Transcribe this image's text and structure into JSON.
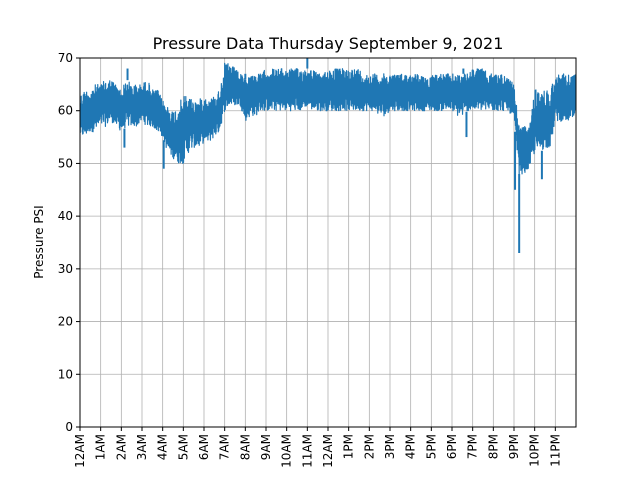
{
  "chart_data": {
    "type": "line",
    "title": "Pressure Data Thursday September 9, 2021",
    "xlabel": "",
    "ylabel": "Pressure PSI",
    "ylim": [
      0,
      70
    ],
    "xlim": [
      0,
      24
    ],
    "grid": true,
    "y_ticks": [
      0,
      10,
      20,
      30,
      40,
      50,
      60,
      70
    ],
    "x_ticks": [
      {
        "hour": 0,
        "label": "12AM"
      },
      {
        "hour": 1,
        "label": "1AM"
      },
      {
        "hour": 2,
        "label": "2AM"
      },
      {
        "hour": 3,
        "label": "3AM"
      },
      {
        "hour": 4,
        "label": "4AM"
      },
      {
        "hour": 5,
        "label": "5AM"
      },
      {
        "hour": 6,
        "label": "6AM"
      },
      {
        "hour": 7,
        "label": "7AM"
      },
      {
        "hour": 8,
        "label": "8AM"
      },
      {
        "hour": 9,
        "label": "9AM"
      },
      {
        "hour": 10,
        "label": "10AM"
      },
      {
        "hour": 11,
        "label": "11AM"
      },
      {
        "hour": 12,
        "label": "12AM"
      },
      {
        "hour": 13,
        "label": "1PM"
      },
      {
        "hour": 14,
        "label": "2PM"
      },
      {
        "hour": 15,
        "label": "3PM"
      },
      {
        "hour": 16,
        "label": "4PM"
      },
      {
        "hour": 17,
        "label": "5PM"
      },
      {
        "hour": 18,
        "label": "6PM"
      },
      {
        "hour": 19,
        "label": "7PM"
      },
      {
        "hour": 20,
        "label": "8PM"
      },
      {
        "hour": 21,
        "label": "9PM"
      },
      {
        "hour": 22,
        "label": "10PM"
      },
      {
        "hour": 23,
        "label": "11PM"
      }
    ],
    "series": [
      {
        "color": "#1f77b4",
        "x": [
          0.0,
          0.25,
          0.5,
          0.75,
          1.0,
          1.25,
          1.5,
          1.75,
          2.0,
          2.25,
          2.5,
          2.75,
          3.0,
          3.25,
          3.5,
          3.75,
          4.0,
          4.25,
          4.5,
          4.75,
          5.0,
          5.25,
          5.5,
          5.75,
          6.0,
          6.25,
          6.5,
          6.75,
          7.0,
          7.25,
          7.5,
          7.75,
          8.0,
          8.25,
          8.5,
          8.75,
          9.0,
          9.25,
          9.5,
          9.75,
          10.0,
          10.25,
          10.5,
          10.75,
          11.0,
          11.25,
          11.5,
          11.75,
          12.0,
          12.25,
          12.5,
          12.75,
          13.0,
          13.25,
          13.5,
          13.75,
          14.0,
          14.25,
          14.5,
          14.75,
          15.0,
          15.25,
          15.5,
          15.75,
          16.0,
          16.25,
          16.5,
          16.75,
          17.0,
          17.25,
          17.5,
          17.75,
          18.0,
          18.25,
          18.5,
          18.75,
          19.0,
          19.25,
          19.5,
          19.75,
          20.0,
          20.25,
          20.5,
          20.75,
          21.0,
          21.25,
          21.5,
          21.75,
          22.0,
          22.25,
          22.5,
          22.75,
          23.0,
          23.25,
          23.5,
          23.75
        ],
        "y_min": [
          55,
          55,
          56,
          56,
          57,
          57,
          58,
          57,
          56,
          57,
          57,
          57,
          58,
          57,
          57,
          56,
          55,
          52,
          51,
          50,
          50,
          52,
          53,
          53,
          54,
          54,
          55,
          56,
          60,
          61,
          61,
          61,
          58,
          59,
          59,
          60,
          60,
          60,
          60,
          60,
          60,
          60,
          60,
          60,
          61,
          60,
          60,
          60,
          60,
          60,
          60,
          60,
          60,
          60,
          60,
          60,
          60,
          60,
          59,
          59,
          60,
          60,
          60,
          60,
          60,
          60,
          60,
          60,
          60,
          60,
          60,
          60,
          60,
          59,
          59,
          60,
          60,
          60,
          60,
          60,
          60,
          60,
          60,
          60,
          58,
          48,
          48,
          49,
          52,
          52,
          53,
          53,
          58,
          58,
          58,
          58
        ],
        "y_max": [
          63,
          64,
          64,
          65,
          65,
          66,
          66,
          65,
          64,
          66,
          65,
          65,
          65,
          66,
          64,
          64,
          62,
          61,
          60,
          61,
          63,
          63,
          62,
          62,
          63,
          62,
          63,
          64,
          69,
          69,
          68,
          67,
          66,
          67,
          67,
          67,
          68,
          68,
          68,
          68,
          68,
          68,
          68,
          68,
          68,
          68,
          67,
          67,
          68,
          68,
          68,
          68,
          68,
          68,
          68,
          67,
          67,
          67,
          67,
          67,
          67,
          67,
          67,
          67,
          67,
          67,
          67,
          66,
          67,
          67,
          67,
          67,
          67,
          67,
          67,
          67,
          68,
          68,
          68,
          67,
          67,
          67,
          67,
          66,
          65,
          57,
          57,
          57,
          64,
          64,
          64,
          64,
          67,
          67,
          67,
          67
        ],
        "spikes_low": [
          [
            2.15,
            53
          ],
          [
            4.05,
            49
          ],
          [
            18.7,
            55
          ],
          [
            21.05,
            45
          ],
          [
            21.25,
            33
          ],
          [
            22.35,
            47
          ]
        ],
        "spikes_high": [
          [
            2.3,
            68
          ],
          [
            8.0,
            67
          ],
          [
            11.0,
            70
          ],
          [
            18.55,
            68
          ]
        ]
      }
    ]
  }
}
